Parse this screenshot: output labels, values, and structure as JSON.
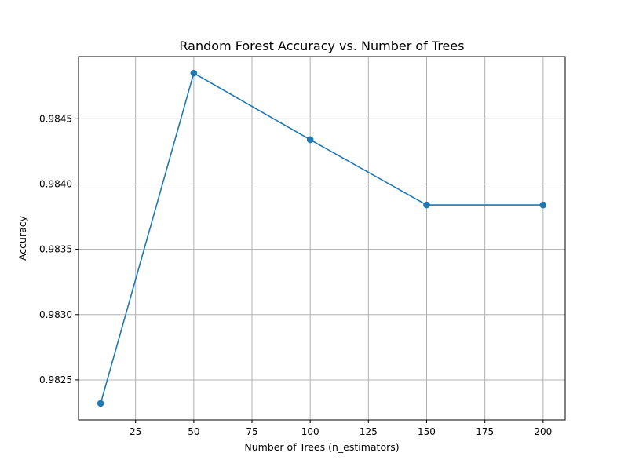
{
  "chart_data": {
    "type": "line",
    "title": "Random Forest Accuracy vs. Number of Trees",
    "xlabel": "Number of Trees (n_estimators)",
    "ylabel": "Accuracy",
    "x": [
      10,
      50,
      100,
      150,
      200
    ],
    "series": [
      {
        "values": [
          0.98232,
          0.98485,
          0.98434,
          0.98384,
          0.98384
        ],
        "color": "#1f77b4",
        "marker": "circle"
      }
    ],
    "x_ticks": [
      25,
      50,
      75,
      100,
      125,
      150,
      175,
      200
    ],
    "x_tick_labels": [
      "25",
      "50",
      "75",
      "100",
      "125",
      "150",
      "175",
      "200"
    ],
    "y_ticks": [
      0.9825,
      0.983,
      0.9835,
      0.984,
      0.9845
    ],
    "y_tick_labels": [
      "0.9825",
      "0.9830",
      "0.9835",
      "0.9840",
      "0.9845"
    ],
    "xlim": [
      0.5,
      209.5
    ],
    "ylim": [
      0.982193,
      0.984977
    ],
    "grid": true,
    "legend": false
  }
}
